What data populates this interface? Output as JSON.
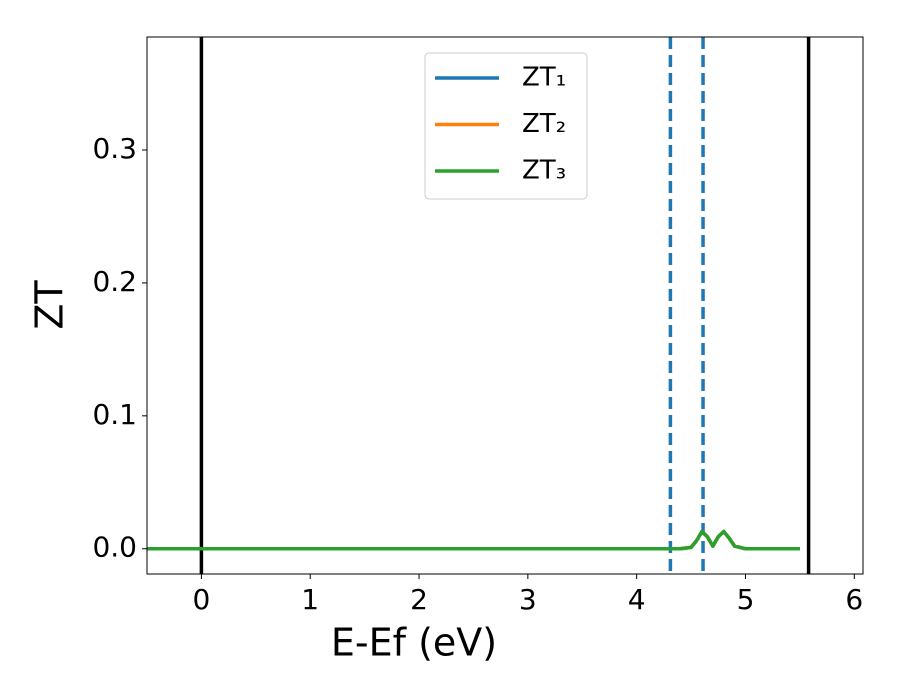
{
  "chart_data": {
    "type": "line",
    "xlabel": "E-Ef (eV)",
    "ylabel": "ZT",
    "xlim": [
      -0.5,
      6.08
    ],
    "ylim": [
      -0.019,
      0.385
    ],
    "xticks": [
      0,
      1,
      2,
      3,
      4,
      5,
      6
    ],
    "yticks": [
      {
        "value": 0,
        "label": "0.0"
      },
      0.1,
      0.2,
      0.3
    ],
    "legend": "upper center",
    "vlines": [
      {
        "x": 0,
        "color": "#000000",
        "style": "solid"
      },
      {
        "x": 5.58,
        "color": "#000000",
        "style": "solid"
      },
      {
        "x": 4.31,
        "color": "#1f77b4",
        "style": "dashed"
      },
      {
        "x": 4.61,
        "color": "#1f77b4",
        "style": "dashed"
      }
    ],
    "x": [
      -0.5,
      0,
      1,
      2,
      3,
      4,
      4.3,
      4.4,
      4.5,
      4.55,
      4.6,
      4.65,
      4.7,
      4.75,
      4.8,
      4.85,
      4.9,
      5.0,
      5.5
    ],
    "series": [
      {
        "name": "ZT₁",
        "color": "#1f77b4",
        "values": [
          0,
          0,
          0,
          0,
          0,
          0,
          0,
          0,
          0.001,
          0.006,
          0.013,
          0.009,
          0.002,
          0.009,
          0.013,
          0.008,
          0.002,
          0,
          0
        ]
      },
      {
        "name": "ZT₂",
        "color": "#ff7f0e",
        "values": [
          0,
          0,
          0,
          0,
          0,
          0,
          0,
          0,
          0.001,
          0.006,
          0.013,
          0.009,
          0.002,
          0.009,
          0.013,
          0.008,
          0.002,
          0,
          0
        ]
      },
      {
        "name": "ZT₃",
        "color": "#2ca02c",
        "values": [
          0,
          0,
          0,
          0,
          0,
          0,
          0,
          0,
          0.001,
          0.006,
          0.013,
          0.009,
          0.002,
          0.009,
          0.013,
          0.008,
          0.002,
          0,
          0
        ]
      }
    ]
  }
}
